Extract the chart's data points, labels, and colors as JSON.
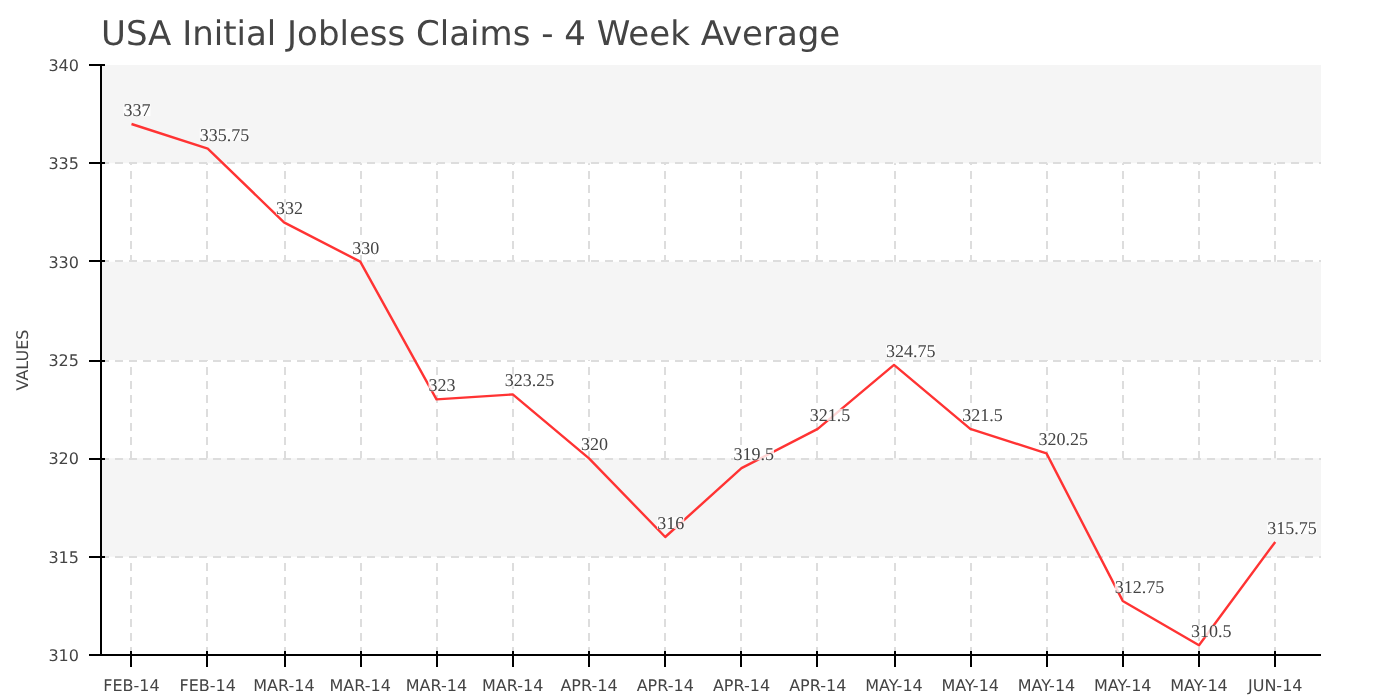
{
  "chart_data": {
    "type": "line",
    "title": "USA Initial Jobless Claims - 4 Week Average",
    "ylabel": "VALUES",
    "categories": [
      "FEB-14",
      "FEB-14",
      "MAR-14",
      "MAR-14",
      "MAR-14",
      "MAR-14",
      "APR-14",
      "APR-14",
      "APR-14",
      "APR-14",
      "MAY-14",
      "MAY-14",
      "MAY-14",
      "MAY-14",
      "MAY-14",
      "JUN-14"
    ],
    "series": [
      {
        "color": "#ff3333",
        "values": [
          337,
          335.75,
          332,
          330,
          323,
          323.25,
          320,
          316,
          319.5,
          321.5,
          324.75,
          321.5,
          320.25,
          312.75,
          310.5,
          315.75
        ]
      }
    ],
    "ylim": [
      310,
      340
    ],
    "yticks": [
      310,
      315,
      320,
      325,
      330,
      335,
      340
    ],
    "grid": true,
    "data_labels": true
  }
}
